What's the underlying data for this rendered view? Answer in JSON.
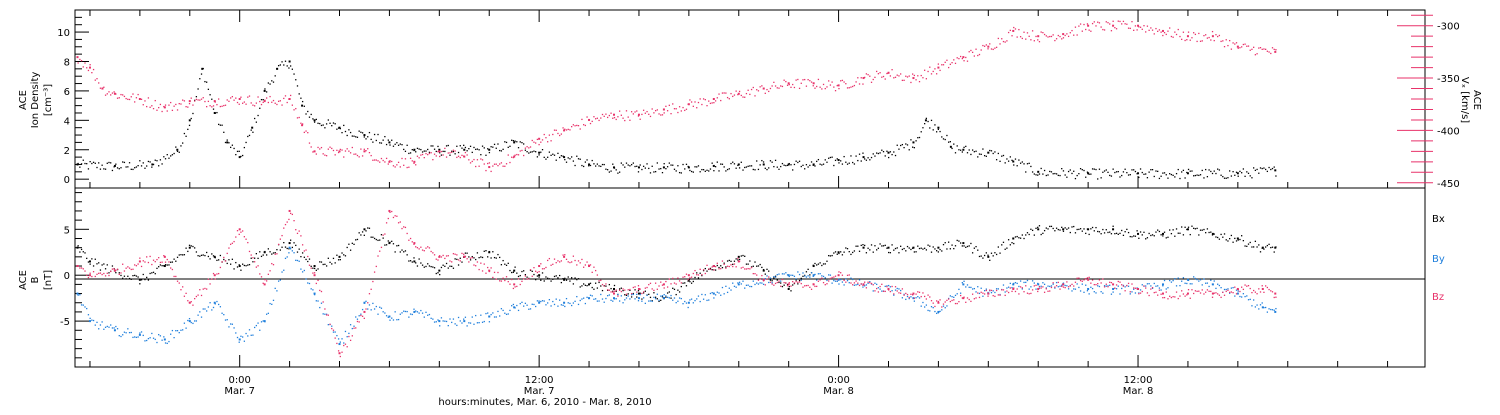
{
  "colors": {
    "black": "#000000",
    "pink": "#e8326a",
    "blue": "#1f7fdc"
  },
  "x_axis": {
    "title": "hours:minutes, Mar.  6, 2010 - Mar.  8, 2010",
    "range_hours": [
      -6.6,
      47.5
    ],
    "labels": [
      {
        "hours": 0,
        "time": "0:00",
        "day": "Mar. 7"
      },
      {
        "hours": 12,
        "time": "12:00",
        "day": "Mar. 7"
      },
      {
        "hours": 24,
        "time": "0:00",
        "day": "Mar. 8"
      },
      {
        "hours": 36,
        "time": "12:00",
        "day": "Mar. 8"
      }
    ]
  },
  "chart_data": [
    {
      "type": "scatter",
      "panel": "top",
      "left_axis": {
        "label_lines": [
          "ACE",
          "Ion Density",
          "[cm⁻³]"
        ],
        "ylim": [
          -0.6,
          11.5
        ],
        "ticks": [
          0,
          2,
          4,
          6,
          8,
          10
        ]
      },
      "right_axis": {
        "label_lines": [
          "ACE",
          "Vₓ [km/s]"
        ],
        "ylim": [
          -455,
          -285
        ],
        "ticks": [
          -450,
          -400,
          -350,
          -300
        ]
      },
      "series": [
        {
          "axis": "left",
          "color": "#000000",
          "points": [
            [
              -6.5,
              1.0
            ],
            [
              -5,
              0.9
            ],
            [
              -3.5,
              1.0
            ],
            [
              -2.5,
              2.0
            ],
            [
              -2,
              4.0
            ],
            [
              -1.5,
              7.5
            ],
            [
              -1,
              4.5
            ],
            [
              -0.5,
              2.5
            ],
            [
              0,
              1.5
            ],
            [
              0.5,
              3.5
            ],
            [
              1,
              6.0
            ],
            [
              1.5,
              7.5
            ],
            [
              2,
              8.0
            ],
            [
              2.5,
              5.0
            ],
            [
              3,
              4.0
            ],
            [
              4,
              3.5
            ],
            [
              5,
              3.0
            ],
            [
              6,
              2.5
            ],
            [
              7,
              2.0
            ],
            [
              8,
              2.0
            ],
            [
              9,
              2.0
            ],
            [
              10,
              2.0
            ],
            [
              11,
              2.5
            ],
            [
              12,
              1.8
            ],
            [
              13,
              1.5
            ],
            [
              14,
              1.0
            ],
            [
              15,
              0.8
            ],
            [
              16,
              0.8
            ],
            [
              17,
              0.8
            ],
            [
              18,
              0.8
            ],
            [
              19,
              0.9
            ],
            [
              20,
              1.0
            ],
            [
              21,
              1.0
            ],
            [
              22,
              1.0
            ],
            [
              23,
              1.0
            ],
            [
              24,
              1.3
            ],
            [
              25,
              1.5
            ],
            [
              26,
              1.8
            ],
            [
              27,
              2.5
            ],
            [
              27.5,
              4.0
            ],
            [
              28,
              3.5
            ],
            [
              28.5,
              2.2
            ],
            [
              29,
              2.0
            ],
            [
              30,
              1.8
            ],
            [
              31,
              1.2
            ],
            [
              32,
              0.5
            ],
            [
              34,
              0.4
            ],
            [
              36,
              0.4
            ],
            [
              38,
              0.4
            ],
            [
              40,
              0.4
            ],
            [
              41.5,
              0.6
            ]
          ]
        },
        {
          "axis": "right",
          "color": "#e8326a",
          "points": [
            [
              -6.5,
              -330
            ],
            [
              -6,
              -340
            ],
            [
              -5.5,
              -360
            ],
            [
              -5,
              -365
            ],
            [
              -4,
              -370
            ],
            [
              -3,
              -378
            ],
            [
              -2,
              -372
            ],
            [
              -1,
              -372
            ],
            [
              0,
              -370
            ],
            [
              1,
              -372
            ],
            [
              2,
              -370
            ],
            [
              2.5,
              -395
            ],
            [
              3,
              -420
            ],
            [
              4,
              -420
            ],
            [
              5,
              -420
            ],
            [
              6,
              -430
            ],
            [
              7,
              -430
            ],
            [
              8,
              -420
            ],
            [
              9,
              -425
            ],
            [
              10,
              -435
            ],
            [
              11,
              -425
            ],
            [
              12,
              -408
            ],
            [
              13,
              -400
            ],
            [
              14,
              -390
            ],
            [
              15,
              -385
            ],
            [
              16,
              -385
            ],
            [
              17,
              -380
            ],
            [
              18,
              -375
            ],
            [
              19,
              -370
            ],
            [
              20,
              -365
            ],
            [
              21,
              -360
            ],
            [
              22,
              -355
            ],
            [
              23,
              -355
            ],
            [
              24,
              -357
            ],
            [
              25,
              -350
            ],
            [
              26,
              -345
            ],
            [
              27,
              -350
            ],
            [
              28,
              -340
            ],
            [
              29,
              -330
            ],
            [
              30,
              -320
            ],
            [
              31,
              -305
            ],
            [
              32,
              -310
            ],
            [
              33,
              -308
            ],
            [
              34,
              -300
            ],
            [
              35,
              -300
            ],
            [
              36,
              -300
            ],
            [
              37,
              -305
            ],
            [
              38,
              -310
            ],
            [
              39,
              -310
            ],
            [
              40,
              -320
            ],
            [
              41.5,
              -325
            ]
          ]
        }
      ]
    },
    {
      "type": "scatter",
      "panel": "bottom",
      "left_axis": {
        "label_lines": [
          "ACE",
          "B",
          "[nT]"
        ],
        "ylim": [
          -10,
          9.5
        ],
        "ticks": [
          -5,
          0,
          5
        ]
      },
      "zero_line": true,
      "series": [
        {
          "name": "Bx",
          "color": "#000000",
          "points": [
            [
              -6.5,
              3.0
            ],
            [
              -6,
              1.5
            ],
            [
              -5,
              0.5
            ],
            [
              -4,
              -0.5
            ],
            [
              -3,
              1.0
            ],
            [
              -2,
              3.0
            ],
            [
              -1,
              2.0
            ],
            [
              0,
              1.0
            ],
            [
              1,
              2.5
            ],
            [
              2,
              3.5
            ],
            [
              3,
              1.0
            ],
            [
              4,
              2.0
            ],
            [
              5,
              5.0
            ],
            [
              6,
              3.5
            ],
            [
              7,
              1.5
            ],
            [
              8,
              0.5
            ],
            [
              9,
              2.0
            ],
            [
              10,
              2.5
            ],
            [
              11,
              0.5
            ],
            [
              12,
              0.0
            ],
            [
              13,
              -0.5
            ],
            [
              14,
              -1.0
            ],
            [
              15,
              -1.5
            ],
            [
              16,
              -2.0
            ],
            [
              17,
              -2.5
            ],
            [
              18,
              -0.5
            ],
            [
              19,
              1.0
            ],
            [
              20,
              2.0
            ],
            [
              21,
              0.5
            ],
            [
              22,
              -1.5
            ],
            [
              23,
              1.0
            ],
            [
              24,
              2.5
            ],
            [
              25,
              3.0
            ],
            [
              26,
              3.0
            ],
            [
              27,
              3.0
            ],
            [
              28,
              3.0
            ],
            [
              29,
              3.5
            ],
            [
              30,
              2.0
            ],
            [
              31,
              4.0
            ],
            [
              32,
              5.0
            ],
            [
              33,
              5.0
            ],
            [
              34,
              5.0
            ],
            [
              35,
              5.0
            ],
            [
              36,
              4.5
            ],
            [
              37,
              4.5
            ],
            [
              38,
              5.0
            ],
            [
              39,
              4.5
            ],
            [
              40,
              4.0
            ],
            [
              41,
              3.0
            ],
            [
              41.5,
              3.0
            ]
          ]
        },
        {
          "name": "By",
          "color": "#1f7fdc",
          "points": [
            [
              -6.5,
              -2.0
            ],
            [
              -6,
              -5.0
            ],
            [
              -5,
              -6.0
            ],
            [
              -4,
              -6.5
            ],
            [
              -3,
              -7.0
            ],
            [
              -2,
              -5.0
            ],
            [
              -1,
              -3.0
            ],
            [
              0,
              -7.0
            ],
            [
              1,
              -5.0
            ],
            [
              2,
              3.0
            ],
            [
              3,
              -2.0
            ],
            [
              4,
              -7.5
            ],
            [
              5,
              -3.0
            ],
            [
              6,
              -4.5
            ],
            [
              7,
              -4.0
            ],
            [
              8,
              -5.0
            ],
            [
              9,
              -5.0
            ],
            [
              10,
              -4.5
            ],
            [
              11,
              -3.5
            ],
            [
              12,
              -3.0
            ],
            [
              13,
              -3.0
            ],
            [
              14,
              -2.5
            ],
            [
              15,
              -2.5
            ],
            [
              16,
              -2.5
            ],
            [
              17,
              -2.5
            ],
            [
              18,
              -3.0
            ],
            [
              19,
              -2.0
            ],
            [
              20,
              -1.0
            ],
            [
              21,
              -0.5
            ],
            [
              22,
              0.0
            ],
            [
              23,
              0.0
            ],
            [
              24,
              -0.5
            ],
            [
              25,
              -1.0
            ],
            [
              26,
              -1.5
            ],
            [
              27,
              -2.5
            ],
            [
              28,
              -4.0
            ],
            [
              29,
              -1.0
            ],
            [
              30,
              -2.0
            ],
            [
              31,
              -1.0
            ],
            [
              32,
              -1.0
            ],
            [
              33,
              -1.0
            ],
            [
              34,
              -1.5
            ],
            [
              35,
              -1.5
            ],
            [
              36,
              -1.5
            ],
            [
              37,
              -1.0
            ],
            [
              38,
              -0.5
            ],
            [
              39,
              -1.0
            ],
            [
              40,
              -2.0
            ],
            [
              41,
              -3.5
            ],
            [
              41.5,
              -4.0
            ]
          ]
        },
        {
          "name": "Bz",
          "color": "#e8326a",
          "points": [
            [
              -6.5,
              1.0
            ],
            [
              -6,
              0.0
            ],
            [
              -5,
              0.5
            ],
            [
              -4,
              1.5
            ],
            [
              -3,
              2.0
            ],
            [
              -2,
              -3.0
            ],
            [
              -1,
              0.0
            ],
            [
              0,
              5.0
            ],
            [
              1,
              -1.0
            ],
            [
              2,
              7.0
            ],
            [
              3,
              0.0
            ],
            [
              4,
              -8.5
            ],
            [
              5,
              -4.0
            ],
            [
              6,
              7.0
            ],
            [
              7,
              3.5
            ],
            [
              8,
              2.0
            ],
            [
              9,
              2.0
            ],
            [
              10,
              0.5
            ],
            [
              11,
              -1.0
            ],
            [
              12,
              1.0
            ],
            [
              13,
              2.0
            ],
            [
              14,
              1.0
            ],
            [
              15,
              -2.0
            ],
            [
              16,
              -1.5
            ],
            [
              17,
              -1.0
            ],
            [
              18,
              0.0
            ],
            [
              19,
              1.0
            ],
            [
              20,
              1.5
            ],
            [
              21,
              -0.5
            ],
            [
              22,
              -1.0
            ],
            [
              23,
              -1.0
            ],
            [
              24,
              0.0
            ],
            [
              25,
              -1.0
            ],
            [
              26,
              -1.5
            ],
            [
              27,
              -2.0
            ],
            [
              28,
              -3.0
            ],
            [
              29,
              -2.5
            ],
            [
              30,
              -2.0
            ],
            [
              31,
              -1.5
            ],
            [
              32,
              -1.5
            ],
            [
              33,
              -1.0
            ],
            [
              34,
              -0.5
            ],
            [
              35,
              -1.0
            ],
            [
              36,
              -1.5
            ],
            [
              37,
              -2.0
            ],
            [
              38,
              -2.0
            ],
            [
              39,
              -2.0
            ],
            [
              40,
              -1.5
            ],
            [
              41,
              -1.5
            ],
            [
              41.5,
              -2.0
            ]
          ]
        }
      ]
    }
  ]
}
